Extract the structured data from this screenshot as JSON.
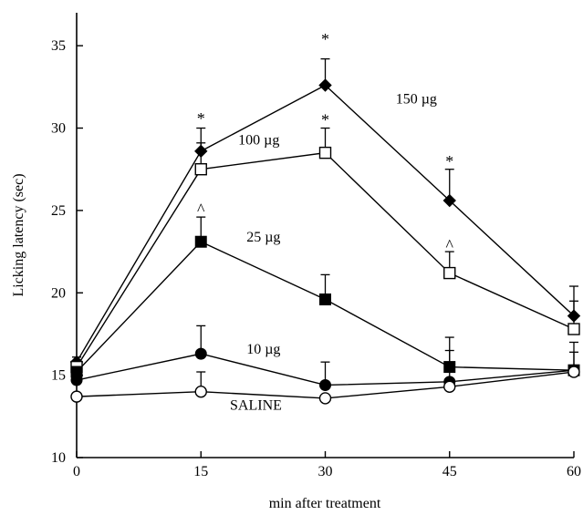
{
  "chart_data": {
    "type": "line",
    "xlabel": "min after treatment",
    "ylabel": "Licking latency (sec)",
    "xlim": [
      0,
      60
    ],
    "ylim": [
      10,
      37
    ],
    "x_ticks": [
      "0",
      "15",
      "30",
      "45",
      "60"
    ],
    "y_ticks": [
      "10",
      "15",
      "20",
      "25",
      "30",
      "35"
    ],
    "x": [
      0,
      15,
      30,
      45,
      60
    ],
    "series": [
      {
        "name": "150 µg",
        "marker": "diamond-filled",
        "values": [
          15.8,
          28.6,
          32.6,
          25.6,
          18.6
        ],
        "errors": [
          0.3,
          1.4,
          1.6,
          1.9,
          1.8
        ],
        "label_pos": [
          38.5,
          31.5
        ]
      },
      {
        "name": "100 µg",
        "marker": "square-open",
        "values": [
          15.5,
          27.5,
          28.5,
          21.2,
          17.8
        ],
        "errors": [
          0.3,
          1.6,
          1.5,
          1.3,
          1.7
        ],
        "label_pos": [
          19.5,
          29.0
        ]
      },
      {
        "name": "25 µg",
        "marker": "square-filled",
        "values": [
          15.2,
          23.1,
          19.6,
          15.5,
          15.3
        ],
        "errors": [
          0.3,
          1.5,
          1.5,
          1.8,
          1.7
        ],
        "label_pos": [
          20.5,
          23.1
        ]
      },
      {
        "name": "10 µg",
        "marker": "circle-filled",
        "values": [
          14.7,
          16.3,
          14.4,
          14.6,
          15.3
        ],
        "errors": [
          0.3,
          1.7,
          1.4,
          1.9,
          1.1
        ],
        "label_pos": [
          20.5,
          16.3
        ]
      },
      {
        "name": "SALINE",
        "marker": "circle-open",
        "values": [
          13.7,
          14.0,
          13.6,
          14.3,
          15.2
        ],
        "errors": [
          0.2,
          1.2,
          0.2,
          0.3,
          0.4
        ],
        "label_pos": [
          18.5,
          12.9
        ]
      }
    ],
    "annotations": [
      {
        "text": "*",
        "x": 15,
        "y": 30.7
      },
      {
        "text": "*",
        "x": 30,
        "y": 35.5
      },
      {
        "text": "*",
        "x": 30,
        "y": 30.6
      },
      {
        "text": "*",
        "x": 45,
        "y": 28.1
      },
      {
        "text": "^",
        "x": 15,
        "y": 25.2
      },
      {
        "text": "^",
        "x": 45,
        "y": 23.0
      }
    ]
  }
}
